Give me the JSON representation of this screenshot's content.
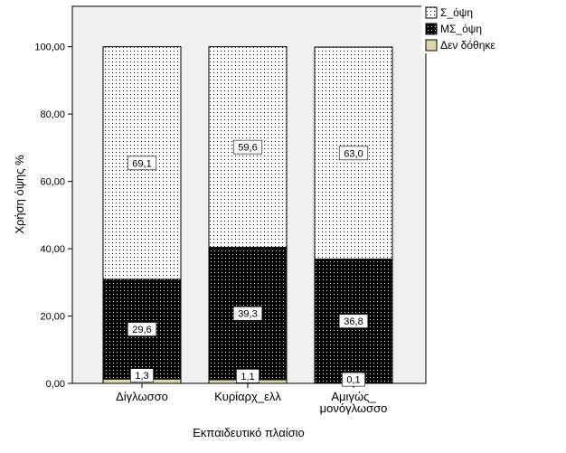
{
  "chart_data": {
    "type": "bar",
    "stacked": true,
    "categories": [
      "Δίγλωσσο",
      "Κυρίαρχ_ελλ",
      "Αμιγώς_ μονόγλωσσο"
    ],
    "category_lines": [
      [
        "Δίγλωσσο"
      ],
      [
        "Κυρίαρχ_ελλ"
      ],
      [
        "Αμιγώς_",
        "μονόγλωσσο"
      ]
    ],
    "series": [
      {
        "name": "Δεν δόθηκε",
        "values": [
          1.3,
          1.1,
          0.1
        ],
        "labels": [
          "1,3",
          "1,1",
          "0,1"
        ],
        "color": "#ddd8a8",
        "pattern": "solid"
      },
      {
        "name": "ΜΣ_όψη",
        "values": [
          29.6,
          39.3,
          36.8
        ],
        "labels": [
          "29,6",
          "39,3",
          "36,8"
        ],
        "color": "#000000",
        "pattern": "dots-white"
      },
      {
        "name": "Σ_όψη",
        "values": [
          69.1,
          59.6,
          63.0
        ],
        "labels": [
          "69,1",
          "59,6",
          "63,0"
        ],
        "color": "#ffffff",
        "pattern": "dots-black"
      }
    ],
    "legend_order": [
      "Σ_όψη",
      "ΜΣ_όψη",
      "Δεν δόθηκε"
    ],
    "legend_position": "top-right",
    "xlabel": "Εκπαιδευτικό πλαίσιο",
    "ylabel": "Χρήση όψης %",
    "ylim": [
      0,
      112
    ],
    "yticks": [
      0,
      20,
      40,
      60,
      80,
      100
    ],
    "ytick_labels": [
      "0,00",
      "20,00",
      "40,00",
      "60,00",
      "80,00",
      "100,00"
    ],
    "plot_background": "#f0f0f0",
    "grid": false
  }
}
